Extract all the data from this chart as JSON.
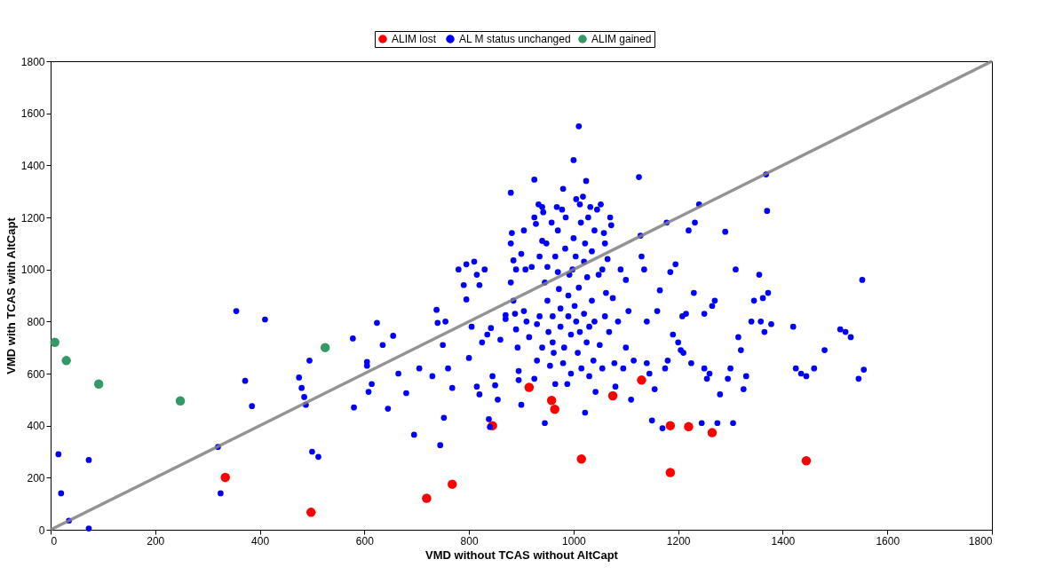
{
  "chart_data": {
    "type": "scatter",
    "xlabel": "VMD without TCAS without AltCapt",
    "ylabel": "VMD with TCAS with AltCapt",
    "xlim": [
      0,
      1800
    ],
    "ylim": [
      0,
      1800
    ],
    "xticks": [
      0,
      200,
      400,
      600,
      800,
      1000,
      1200,
      1400,
      1600,
      1800
    ],
    "yticks": [
      0,
      200,
      400,
      600,
      800,
      1000,
      1200,
      1400,
      1600,
      1800
    ],
    "grid": false,
    "legend": "top",
    "marker": "circle",
    "series": [
      {
        "name": "ALIM  lost",
        "color": "#ff0000",
        "x": [
          334,
          498,
          719,
          768,
          845,
          915,
          958,
          964,
          1015,
          1075,
          1130,
          1185,
          1185,
          1220,
          1265,
          1445
        ],
        "values": [
          201,
          67,
          121,
          175,
          400,
          547,
          497,
          463,
          272,
          515,
          575,
          220,
          400,
          396,
          373,
          265
        ]
      },
      {
        "name": "AL M status unchanged",
        "color": "#0000ff",
        "x": [
          15,
          20,
          35,
          73,
          73,
          320,
          325,
          355,
          372,
          385,
          410,
          475,
          480,
          485,
          488,
          495,
          500,
          512,
          578,
          580,
          605,
          605,
          608,
          614,
          624,
          635,
          645,
          655,
          665,
          680,
          695,
          705,
          730,
          738,
          740,
          745,
          750,
          752,
          755,
          760,
          768,
          780,
          790,
          795,
          795,
          800,
          805,
          810,
          815,
          815,
          820,
          820,
          825,
          830,
          835,
          838,
          840,
          842,
          845,
          850,
          855,
          860,
          870,
          870,
          880,
          880,
          880,
          882,
          885,
          885,
          888,
          890,
          890,
          893,
          895,
          895,
          900,
          900,
          905,
          905,
          908,
          910,
          915,
          920,
          925,
          925,
          925,
          928,
          930,
          930,
          933,
          935,
          935,
          940,
          940,
          940,
          942,
          945,
          945,
          948,
          950,
          950,
          952,
          955,
          958,
          960,
          960,
          962,
          965,
          965,
          968,
          970,
          970,
          972,
          975,
          975,
          978,
          980,
          980,
          982,
          984,
          985,
          988,
          990,
          990,
          992,
          995,
          995,
          998,
          1000,
          1000,
          1002,
          1004,
          1005,
          1005,
          1008,
          1010,
          1010,
          1012,
          1012,
          1014,
          1015,
          1018,
          1020,
          1020,
          1022,
          1022,
          1024,
          1025,
          1026,
          1028,
          1030,
          1030,
          1032,
          1035,
          1035,
          1038,
          1040,
          1040,
          1042,
          1045,
          1048,
          1050,
          1052,
          1055,
          1055,
          1058,
          1060,
          1060,
          1062,
          1065,
          1068,
          1070,
          1072,
          1075,
          1078,
          1080,
          1085,
          1090,
          1095,
          1100,
          1100,
          1105,
          1110,
          1115,
          1125,
          1128,
          1130,
          1135,
          1140,
          1140,
          1145,
          1150,
          1155,
          1160,
          1165,
          1170,
          1175,
          1178,
          1180,
          1185,
          1190,
          1195,
          1200,
          1205,
          1208,
          1210,
          1215,
          1220,
          1225,
          1230,
          1232,
          1240,
          1245,
          1250,
          1250,
          1255,
          1260,
          1265,
          1270,
          1275,
          1280,
          1290,
          1295,
          1300,
          1305,
          1310,
          1315,
          1320,
          1325,
          1330,
          1340,
          1345,
          1355,
          1358,
          1362,
          1365,
          1368,
          1370,
          1372,
          1378,
          1420,
          1425,
          1435,
          1445,
          1460,
          1480,
          1510,
          1520,
          1530,
          1545,
          1552,
          1555
        ],
        "values": [
          290,
          140,
          35,
          268,
          5,
          318,
          140,
          840,
          572,
          475,
          808,
          585,
          545,
          510,
          480,
          650,
          300,
          280,
          735,
          470,
          630,
          645,
          530,
          560,
          795,
          710,
          465,
          745,
          600,
          525,
          365,
          620,
          590,
          845,
          795,
          325,
          710,
          430,
          800,
          620,
          545,
          1000,
          940,
          1020,
          885,
          660,
          780,
          1030,
          980,
          550,
          940,
          520,
          720,
          1000,
          750,
          425,
          395,
          775,
          590,
          555,
          500,
          730,
          810,
          825,
          1295,
          950,
          1100,
          1140,
          1035,
          880,
          830,
          1000,
          770,
          700,
          610,
          575,
          1060,
          480,
          1150,
          840,
          1000,
          800,
          740,
          1010,
          1345,
          1200,
          580,
          1175,
          650,
          790,
          1250,
          820,
          1050,
          1240,
          1110,
          700,
          1220,
          950,
          410,
          1100,
          880,
          1010,
          760,
          630,
          1180,
          820,
          720,
          680,
          560,
          1050,
          1240,
          1150,
          990,
          925,
          850,
          780,
          1230,
          1310,
          640,
          700,
          1080,
          1200,
          560,
          820,
          900,
          980,
          750,
          600,
          1000,
          1420,
          1120,
          860,
          1050,
          1270,
          800,
          680,
          1550,
          930,
          1250,
          760,
          1180,
          620,
          1280,
          1030,
          830,
          1100,
          450,
          1340,
          720,
          970,
          1200,
          780,
          590,
          1240,
          880,
          1070,
          650,
          1150,
          800,
          530,
          1230,
          980,
          710,
          1250,
          1000,
          620,
          1140,
          820,
          1100,
          910,
          1040,
          760,
          1200,
          1170,
          890,
          640,
          550,
          800,
          1000,
          620,
          960,
          700,
          840,
          500,
          650,
          1355,
          1130,
          1050,
          1000,
          800,
          640,
          600,
          420,
          540,
          840,
          920,
          390,
          620,
          1180,
          650,
          990,
          750,
          1020,
          720,
          690,
          820,
          680,
          830,
          1150,
          640,
          910,
          1180,
          1250,
          410,
          830,
          620,
          580,
          600,
          860,
          880,
          410,
          520,
          1145,
          580,
          620,
          410,
          1000,
          740,
          690,
          540,
          590,
          800,
          880,
          980,
          800,
          890,
          760,
          1365,
          1225,
          910,
          790,
          780,
          620,
          600,
          590,
          620,
          690,
          770,
          760,
          740,
          580,
          960,
          615
        ]
      },
      {
        "name": "ALIM gained",
        "color": "#339966",
        "x": [
          8,
          30,
          92,
          248,
          525
        ],
        "values": [
          720,
          650,
          560,
          495,
          700
        ]
      },
      {
        "type": "line",
        "marker": "none",
        "color": "#808080",
        "x": [
          0,
          1800
        ],
        "values": [
          0,
          1800
        ]
      }
    ]
  }
}
